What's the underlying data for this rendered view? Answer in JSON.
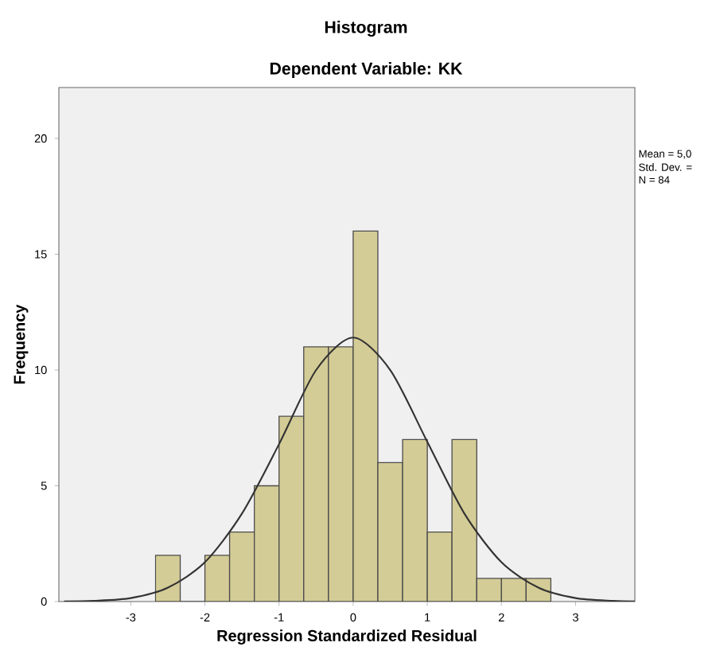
{
  "chart_data": {
    "type": "histogram",
    "title": "Histogram",
    "subtitle": "Dependent Variable: KK",
    "xlabel": "Regression Standardized Residual",
    "ylabel": "Frequency",
    "bins": [
      -2.667,
      -2.333,
      -2,
      -1.667,
      -1.333,
      -1,
      -0.667,
      -0.333,
      0,
      0.333,
      0.667,
      1,
      1.333,
      1.667,
      2,
      2.333,
      2.667
    ],
    "values": [
      2,
      0,
      2,
      3,
      5,
      8,
      11,
      11,
      16,
      6,
      7,
      3,
      7,
      1,
      1,
      1
    ],
    "color": "#d4cc96",
    "series": [
      {
        "type": "line",
        "color": "#333333",
        "x": [
          -3.9,
          -3.5,
          -3,
          -2.5,
          -2,
          -1.5,
          -1,
          -0.5,
          0,
          0.5,
          1,
          1.5,
          2,
          2.5,
          3,
          3.5,
          3.8
        ],
        "values": [
          0.01,
          0.03,
          0.15,
          0.6,
          1.7,
          3.8,
          6.8,
          10,
          11.4,
          10,
          6.9,
          3.8,
          1.7,
          0.6,
          0.15,
          0.03,
          0.01
        ]
      }
    ],
    "xlim": [
      -3.97,
      3.8
    ],
    "ylim": [
      0,
      22.2
    ],
    "xticks": [
      -3,
      -2,
      -1,
      0,
      1,
      2,
      3
    ],
    "yticks": [
      0,
      5,
      10,
      15,
      20
    ],
    "annotations": [
      "Mean = 5,0",
      "Std. Dev. =",
      "N = 84"
    ]
  }
}
